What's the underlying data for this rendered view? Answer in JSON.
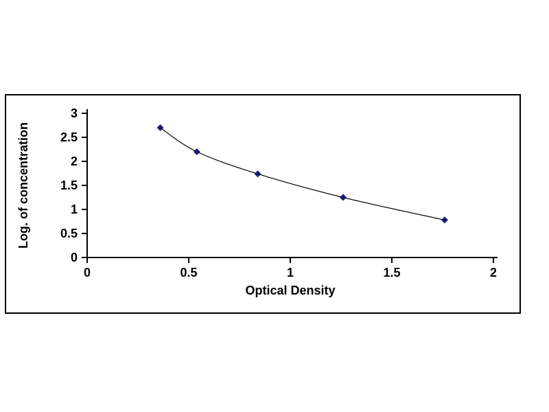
{
  "figure": {
    "background_color": "#ffffff",
    "frame_border_color": "#000000"
  },
  "chart_data": {
    "type": "scatter",
    "title": "",
    "xlabel": "Optical Density",
    "ylabel": "Log. of concentration",
    "x": [
      0.36,
      0.54,
      0.84,
      1.26,
      1.76
    ],
    "y": [
      2.7,
      2.2,
      1.74,
      1.25,
      0.78
    ],
    "xlim": [
      0,
      2
    ],
    "ylim": [
      0,
      3
    ],
    "x_ticks": [
      0,
      0.5,
      1,
      1.5,
      2
    ],
    "y_ticks": [
      0,
      0.5,
      1,
      1.5,
      2,
      2.5,
      3
    ],
    "grid": false,
    "legend_position": "none",
    "line_style": "smooth",
    "marker": "diamond",
    "marker_color": "#1A1A78",
    "line_color": "#000000",
    "axis_color": "#000000"
  }
}
